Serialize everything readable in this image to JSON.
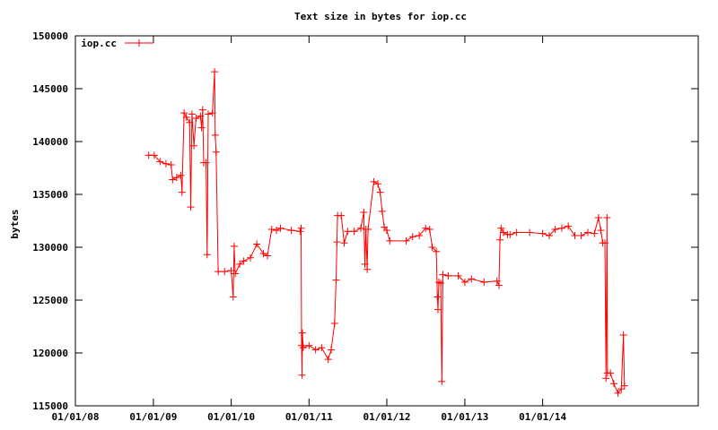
{
  "chart_data": {
    "type": "line",
    "title": "Text size in bytes for iop.cc",
    "xlabel": "",
    "ylabel": "bytes",
    "ylim": [
      115000,
      150000
    ],
    "xlim": [
      "2008-01-01",
      "2016-01-01"
    ],
    "grid": false,
    "legend_position": "top-left",
    "x_tick_labels": [
      "01/01/08",
      "01/01/09",
      "01/01/10",
      "01/01/11",
      "01/01/12",
      "01/01/13",
      "01/01/14"
    ],
    "y_tick_labels": [
      "115000",
      "120000",
      "125000",
      "130000",
      "135000",
      "140000",
      "145000",
      "150000"
    ],
    "series": [
      {
        "name": "iop.cc",
        "color": "#ff0000",
        "marker": "plus",
        "points": [
          [
            "2008-12-10",
            138700
          ],
          [
            "2009-01-05",
            138700
          ],
          [
            "2009-02-01",
            138100
          ],
          [
            "2009-03-01",
            137900
          ],
          [
            "2009-03-25",
            137800
          ],
          [
            "2009-04-01",
            136400
          ],
          [
            "2009-04-20",
            136600
          ],
          [
            "2009-05-10",
            136800
          ],
          [
            "2009-05-15",
            135200
          ],
          [
            "2009-05-25",
            142700
          ],
          [
            "2009-06-05",
            142300
          ],
          [
            "2009-06-20",
            141800
          ],
          [
            "2009-06-25",
            133800
          ],
          [
            "2009-07-01",
            142600
          ],
          [
            "2009-07-10",
            139600
          ],
          [
            "2009-07-20",
            142200
          ],
          [
            "2009-08-10",
            142400
          ],
          [
            "2009-08-15",
            141300
          ],
          [
            "2009-08-20",
            143000
          ],
          [
            "2009-08-25",
            138000
          ],
          [
            "2009-09-05",
            138000
          ],
          [
            "2009-09-10",
            129300
          ],
          [
            "2009-09-15",
            142600
          ],
          [
            "2009-10-05",
            142700
          ],
          [
            "2009-10-15",
            146600
          ],
          [
            "2009-10-18",
            140600
          ],
          [
            "2009-10-22",
            139000
          ],
          [
            "2009-11-01",
            127700
          ],
          [
            "2009-12-01",
            127700
          ],
          [
            "2010-01-01",
            127800
          ],
          [
            "2010-01-10",
            125300
          ],
          [
            "2010-01-15",
            130100
          ],
          [
            "2010-01-20",
            127500
          ],
          [
            "2010-02-10",
            128400
          ],
          [
            "2010-03-01",
            128700
          ],
          [
            "2010-04-01",
            129000
          ],
          [
            "2010-05-01",
            130300
          ],
          [
            "2010-06-01",
            129400
          ],
          [
            "2010-06-20",
            129200
          ],
          [
            "2010-07-10",
            131700
          ],
          [
            "2010-08-01",
            131600
          ],
          [
            "2010-08-20",
            131800
          ],
          [
            "2010-10-10",
            131600
          ],
          [
            "2010-11-20",
            131500
          ],
          [
            "2010-11-25",
            131800
          ],
          [
            "2010-11-27",
            120700
          ],
          [
            "2010-11-29",
            117900
          ],
          [
            "2010-12-01",
            121900
          ],
          [
            "2010-12-05",
            120500
          ],
          [
            "2011-01-01",
            120700
          ],
          [
            "2011-02-01",
            120300
          ],
          [
            "2011-03-01",
            120500
          ],
          [
            "2011-04-01",
            119400
          ],
          [
            "2011-04-15",
            120300
          ],
          [
            "2011-05-01",
            122800
          ],
          [
            "2011-05-08",
            126900
          ],
          [
            "2011-05-12",
            130500
          ],
          [
            "2011-05-15",
            133000
          ],
          [
            "2011-06-01",
            133000
          ],
          [
            "2011-06-15",
            130400
          ],
          [
            "2011-07-01",
            131500
          ],
          [
            "2011-08-01",
            131500
          ],
          [
            "2011-09-01",
            131800
          ],
          [
            "2011-09-15",
            133300
          ],
          [
            "2011-09-20",
            128400
          ],
          [
            "2011-09-25",
            131700
          ],
          [
            "2011-10-01",
            127900
          ],
          [
            "2011-10-05",
            131700
          ],
          [
            "2011-11-01",
            136200
          ],
          [
            "2011-11-20",
            136000
          ],
          [
            "2011-12-01",
            135200
          ],
          [
            "2011-12-10",
            133400
          ],
          [
            "2011-12-20",
            131900
          ],
          [
            "2012-01-01",
            131600
          ],
          [
            "2012-01-15",
            130600
          ],
          [
            "2012-04-01",
            130600
          ],
          [
            "2012-05-01",
            131000
          ],
          [
            "2012-06-01",
            131100
          ],
          [
            "2012-07-01",
            131800
          ],
          [
            "2012-07-20",
            131700
          ],
          [
            "2012-08-01",
            130000
          ],
          [
            "2012-08-20",
            129600
          ],
          [
            "2012-08-25",
            125300
          ],
          [
            "2012-08-28",
            124100
          ],
          [
            "2012-09-01",
            126700
          ],
          [
            "2012-09-10",
            126600
          ],
          [
            "2012-09-15",
            117300
          ],
          [
            "2012-09-20",
            127400
          ],
          [
            "2012-10-15",
            127300
          ],
          [
            "2012-12-01",
            127300
          ],
          [
            "2013-01-01",
            126700
          ],
          [
            "2013-02-01",
            127000
          ],
          [
            "2013-04-01",
            126700
          ],
          [
            "2013-06-01",
            126800
          ],
          [
            "2013-06-10",
            126400
          ],
          [
            "2013-06-15",
            130700
          ],
          [
            "2013-06-20",
            131800
          ],
          [
            "2013-07-01",
            131400
          ],
          [
            "2013-07-20",
            131200
          ],
          [
            "2013-08-01",
            131200
          ],
          [
            "2013-09-01",
            131400
          ],
          [
            "2013-11-01",
            131400
          ],
          [
            "2014-01-01",
            131300
          ],
          [
            "2014-02-01",
            131100
          ],
          [
            "2014-03-01",
            131700
          ],
          [
            "2014-04-01",
            131800
          ],
          [
            "2014-05-01",
            132000
          ],
          [
            "2014-06-01",
            131100
          ],
          [
            "2014-07-01",
            131100
          ],
          [
            "2014-08-01",
            131400
          ],
          [
            "2014-09-01",
            131300
          ],
          [
            "2014-09-20",
            132800
          ],
          [
            "2014-10-01",
            131600
          ],
          [
            "2014-10-10",
            130400
          ],
          [
            "2014-10-20",
            130400
          ],
          [
            "2014-10-25",
            117600
          ],
          [
            "2014-10-30",
            132800
          ],
          [
            "2014-11-01",
            118100
          ],
          [
            "2014-11-15",
            118100
          ],
          [
            "2014-12-01",
            117100
          ],
          [
            "2014-12-20",
            116200
          ],
          [
            "2015-01-05",
            116600
          ],
          [
            "2015-01-15",
            121700
          ],
          [
            "2015-01-20",
            116900
          ]
        ]
      }
    ]
  }
}
